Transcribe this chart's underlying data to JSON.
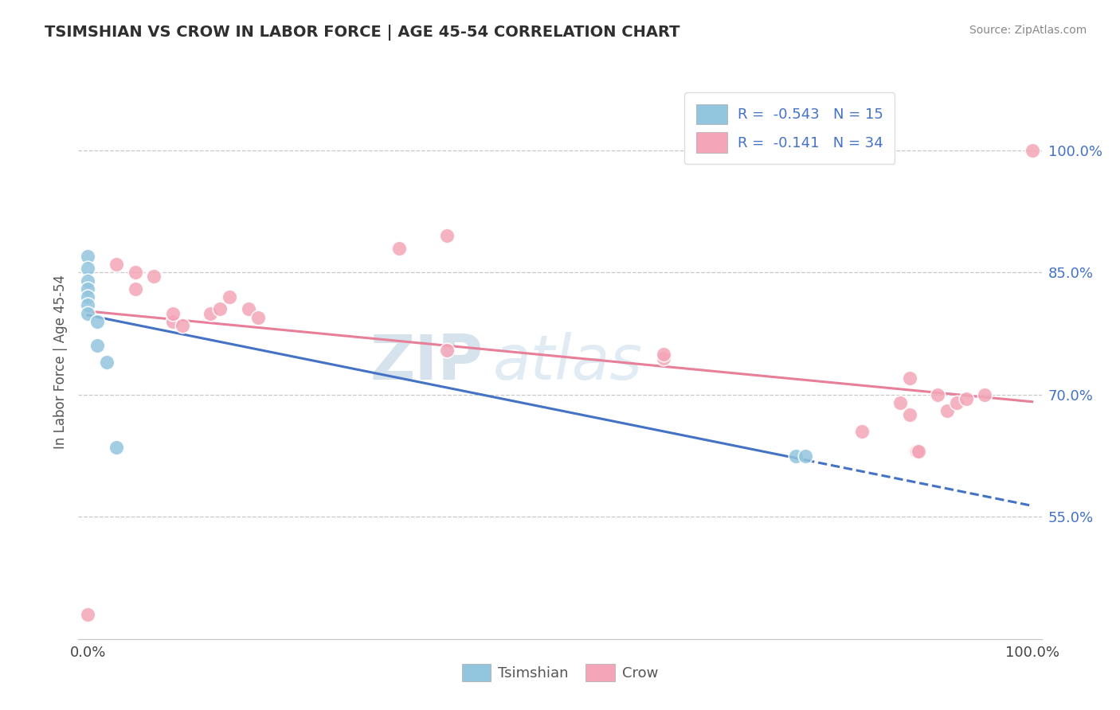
{
  "title": "TSIMSHIAN VS CROW IN LABOR FORCE | AGE 45-54 CORRELATION CHART",
  "source": "Source: ZipAtlas.com",
  "ylabel": "In Labor Force | Age 45-54",
  "xlim": [
    -0.01,
    1.01
  ],
  "ylim": [
    0.4,
    1.08
  ],
  "ytick_vals": [
    0.55,
    0.7,
    0.85,
    1.0
  ],
  "ytick_labels": [
    "55.0%",
    "70.0%",
    "85.0%",
    "100.0%"
  ],
  "xtick_vals": [
    0.0,
    1.0
  ],
  "xtick_labels": [
    "0.0%",
    "100.0%"
  ],
  "r_tsimshian": "-0.543",
  "n_tsimshian": "15",
  "r_crow": "-0.141",
  "n_crow": "34",
  "tsimshian_color": "#92c5de",
  "crow_color": "#f4a6b8",
  "tsimshian_line_color": "#4472c4",
  "crow_line_color": "#e87f99",
  "watermark_zip": "ZIP",
  "watermark_atlas": "atlas",
  "bg_color": "#ffffff",
  "grid_color": "#c8c8c8",
  "tsimshian_x": [
    0.0,
    0.0,
    0.0,
    0.0,
    0.0,
    0.0,
    0.0,
    0.01,
    0.01,
    0.02,
    0.03,
    0.75,
    0.76
  ],
  "tsimshian_y": [
    0.87,
    0.855,
    0.84,
    0.83,
    0.82,
    0.81,
    0.8,
    0.79,
    0.76,
    0.74,
    0.635,
    0.625,
    0.625
  ],
  "crow_x": [
    0.0,
    0.03,
    0.05,
    0.05,
    0.07,
    0.09,
    0.09,
    0.1,
    0.13,
    0.14,
    0.15,
    0.17,
    0.18,
    0.33,
    0.38,
    0.38,
    0.61,
    0.61,
    0.82,
    0.86,
    0.87,
    0.87,
    0.875,
    0.876,
    0.877,
    0.878,
    0.88,
    0.9,
    0.91,
    0.92,
    0.93,
    0.95,
    1.0
  ],
  "crow_y": [
    0.43,
    0.86,
    0.83,
    0.85,
    0.845,
    0.79,
    0.8,
    0.785,
    0.8,
    0.805,
    0.82,
    0.805,
    0.795,
    0.88,
    0.895,
    0.755,
    0.745,
    0.75,
    0.655,
    0.69,
    0.72,
    0.675,
    0.63,
    0.63,
    0.63,
    0.63,
    0.63,
    0.7,
    0.68,
    0.69,
    0.695,
    0.7,
    1.0
  ]
}
